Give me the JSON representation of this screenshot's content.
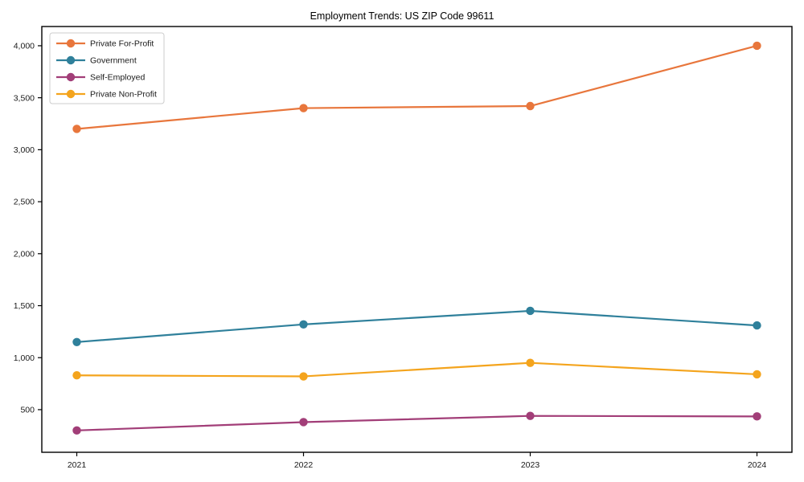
{
  "chart_data": {
    "type": "line",
    "title": "Employment Trends: US ZIP Code 99611",
    "xlabel": "",
    "ylabel": "",
    "categories": [
      "2021",
      "2022",
      "2023",
      "2024"
    ],
    "x": [
      2021,
      2022,
      2023,
      2024
    ],
    "series": [
      {
        "name": "Private For-Profit",
        "color": "#E8763C",
        "values": [
          3200,
          3400,
          3420,
          4000
        ]
      },
      {
        "name": "Government",
        "color": "#2F809B",
        "values": [
          1150,
          1320,
          1450,
          1310
        ]
      },
      {
        "name": "Self-Employed",
        "color": "#A23E78",
        "values": [
          300,
          380,
          440,
          435
        ]
      },
      {
        "name": "Private Non-Profit",
        "color": "#F4A41D",
        "values": [
          830,
          820,
          950,
          840
        ]
      }
    ],
    "yticks": [
      500,
      1000,
      1500,
      2000,
      2500,
      3000,
      3500,
      4000
    ],
    "ytick_labels": [
      "500",
      "1,000",
      "1,500",
      "2,000",
      "2,500",
      "3,000",
      "3,500",
      "4,000"
    ],
    "ylim": [
      90,
      4185
    ],
    "grid": false,
    "legend_position": "upper-left",
    "marker": "circle",
    "colors": {
      "axis": "#000000",
      "tick_text": "#1a1a1a",
      "legend_border": "#cccccc",
      "legend_bg": "#ffffff",
      "background": "#ffffff"
    }
  }
}
